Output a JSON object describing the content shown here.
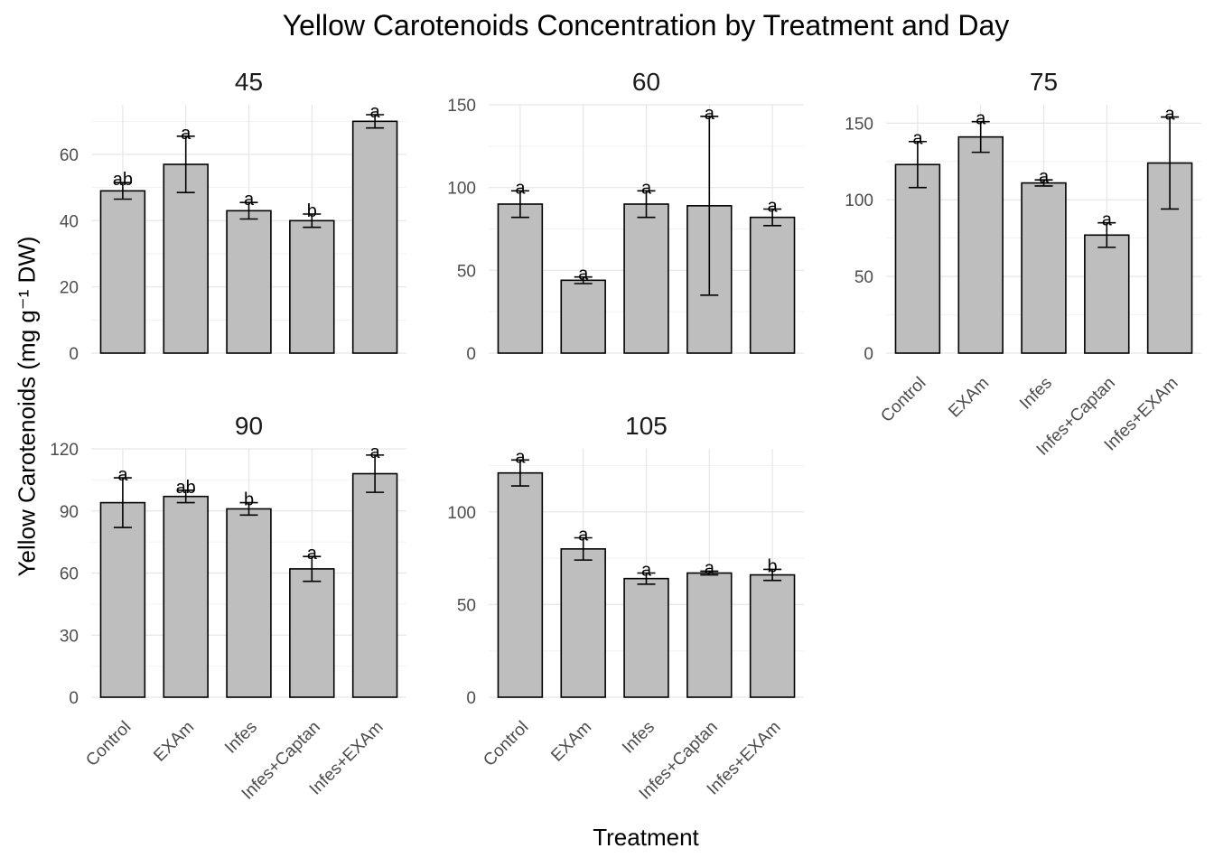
{
  "chart_data": {
    "type": "bar",
    "title": "Yellow Carotenoids Concentration by Treatment and Day",
    "xlabel": "Treatment",
    "ylabel": "Yellow Carotenoids (mg g⁻¹ DW)",
    "categories": [
      "Control",
      "EXAm",
      "Infes",
      "Infes+Captan",
      "Infes+EXAm"
    ],
    "bar_color": "#bebebe",
    "grid": true,
    "facets": [
      {
        "day": "45",
        "ylim": [
          0,
          75
        ],
        "yticks": [
          0,
          20,
          40,
          60
        ],
        "values": [
          49,
          57,
          43,
          40,
          70
        ],
        "errors": [
          2.5,
          8.5,
          2.5,
          2.0,
          2.0
        ],
        "letters": [
          "ab",
          "a",
          "a",
          "b",
          "a"
        ],
        "show_categories": false
      },
      {
        "day": "60",
        "ylim": [
          0,
          150
        ],
        "yticks": [
          0,
          50,
          100,
          150
        ],
        "values": [
          90,
          44,
          90,
          89,
          82
        ],
        "errors": [
          8,
          2,
          8,
          54,
          5
        ],
        "letters": [
          "a",
          "a",
          "a",
          "a",
          "a"
        ],
        "show_categories": false
      },
      {
        "day": "75",
        "ylim": [
          0,
          162
        ],
        "yticks": [
          0,
          50,
          100,
          150
        ],
        "values": [
          123,
          141,
          111,
          77,
          124
        ],
        "errors": [
          15,
          10,
          2,
          8,
          30
        ],
        "letters": [
          "a",
          "a",
          "a",
          "a",
          "a"
        ],
        "show_categories": true
      },
      {
        "day": "90",
        "ylim": [
          0,
          120
        ],
        "yticks": [
          0,
          30,
          60,
          90,
          120
        ],
        "values": [
          94,
          97,
          91,
          62,
          108
        ],
        "errors": [
          12,
          3,
          3,
          6,
          9
        ],
        "letters": [
          "a",
          "ab",
          "b",
          "a",
          "a"
        ],
        "show_categories": true
      },
      {
        "day": "105",
        "ylim": [
          0,
          134
        ],
        "yticks": [
          0,
          50,
          100
        ],
        "values": [
          121,
          80,
          64,
          67,
          66
        ],
        "errors": [
          7,
          6,
          3,
          1,
          3
        ],
        "letters": [
          "a",
          "a",
          "a",
          "a",
          "b"
        ],
        "show_categories": true
      }
    ]
  }
}
